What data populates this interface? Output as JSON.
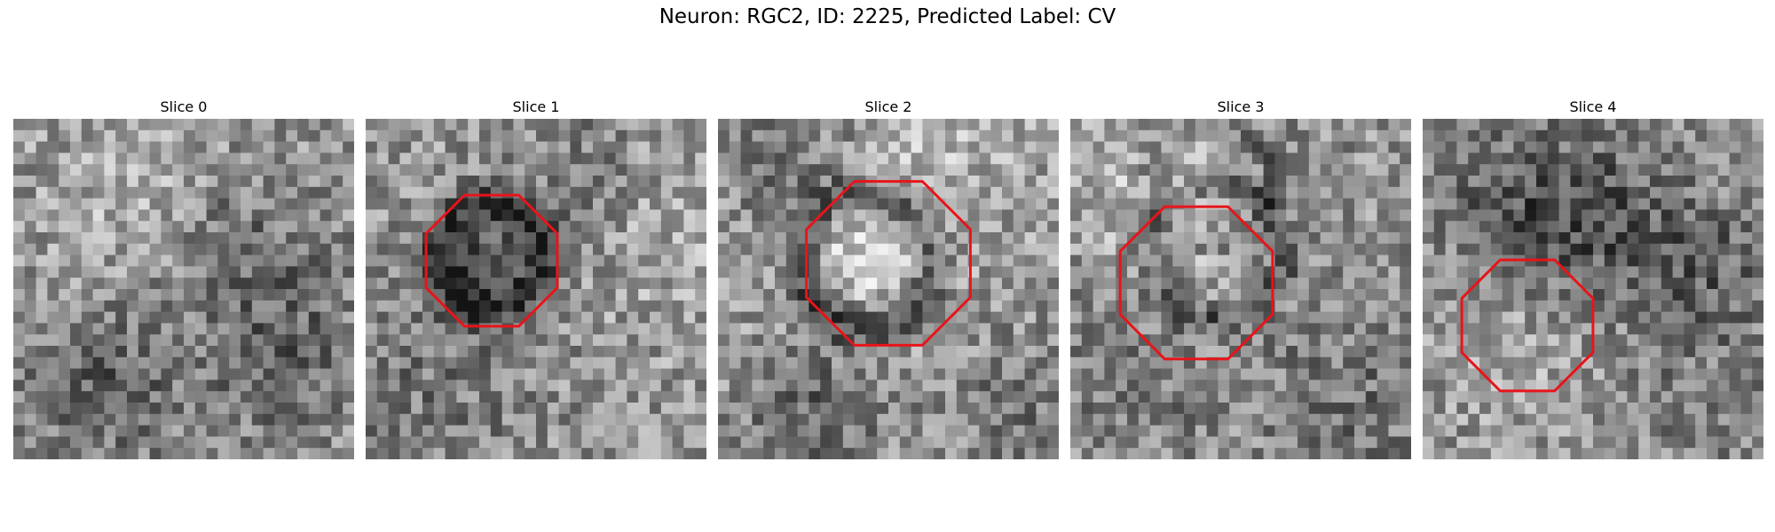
{
  "figure": {
    "title": "Neuron: RGC2, ID: 2225, Predicted Label: CV"
  },
  "panels": [
    {
      "title": "Slice 0",
      "contour": false
    },
    {
      "title": "Slice 1",
      "contour": true
    },
    {
      "title": "Slice 2",
      "contour": true
    },
    {
      "title": "Slice 3",
      "contour": true
    },
    {
      "title": "Slice 4",
      "contour": true
    }
  ],
  "colors": {
    "contour": "#e8141a",
    "background": "#ffffff"
  }
}
